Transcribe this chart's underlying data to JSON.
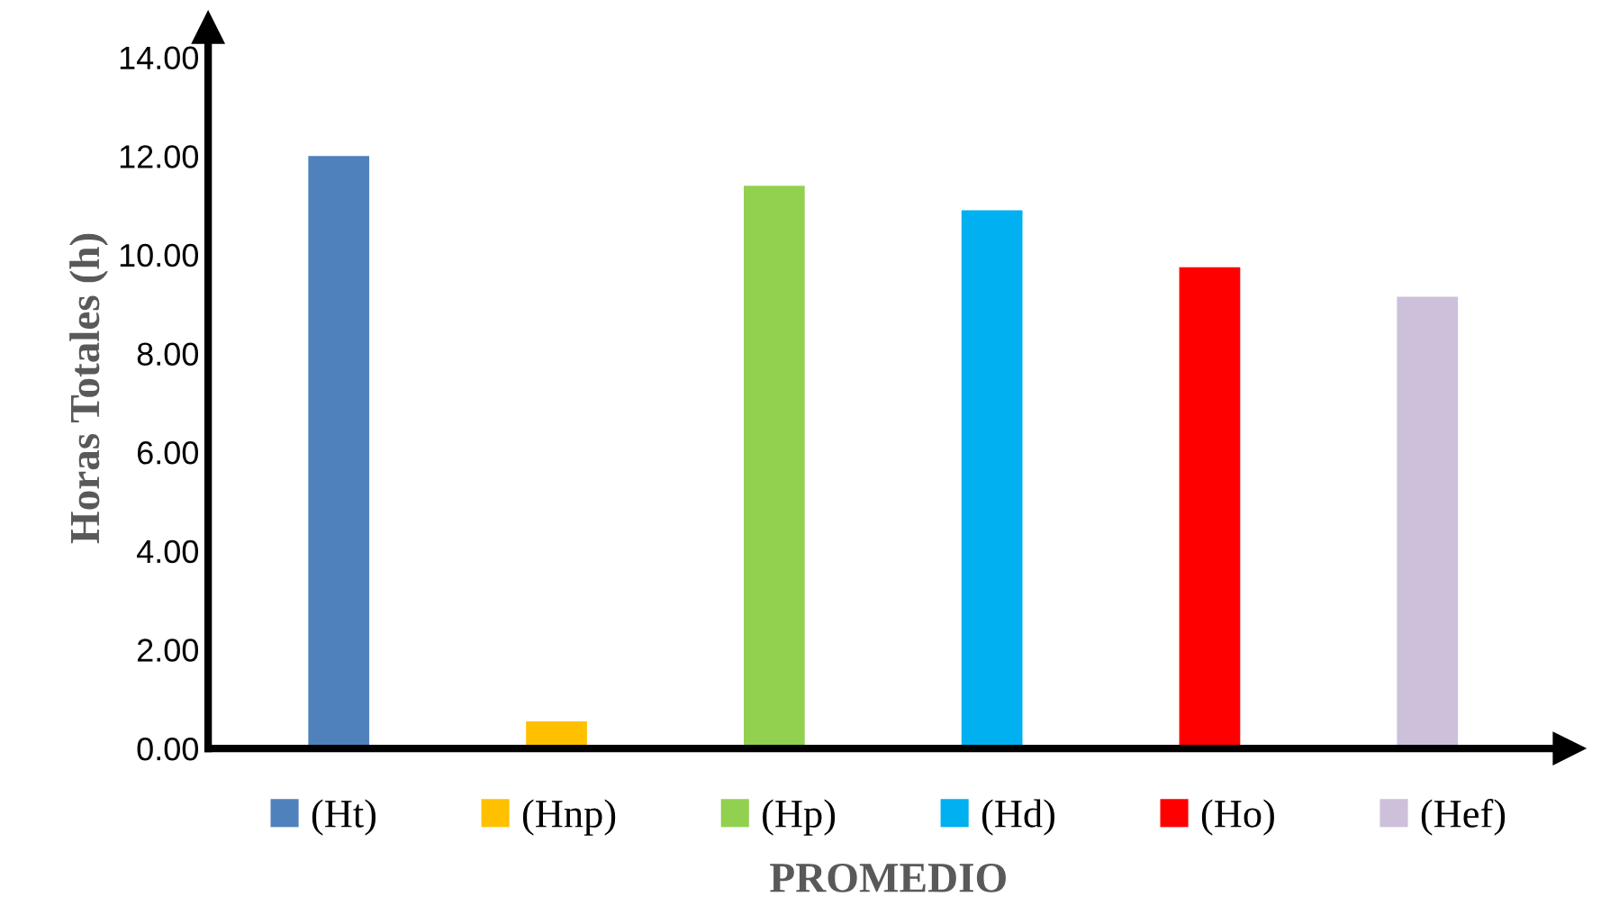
{
  "chart_data": {
    "type": "bar",
    "xlabel": "PROMEDIO",
    "ylabel": "Horas Totales (h)",
    "categories": [
      null,
      null,
      null,
      null,
      null,
      null
    ],
    "series": [
      {
        "name": "(Ht)",
        "color": "#4f81bd",
        "values": [
          12.0,
          null,
          null,
          null,
          null,
          null
        ]
      },
      {
        "name": "(Hnp)",
        "color": "#ffc000",
        "values": [
          null,
          0.55,
          null,
          null,
          null,
          null
        ]
      },
      {
        "name": "(Hp)",
        "color": "#92d050",
        "values": [
          null,
          null,
          11.4,
          null,
          null,
          null
        ]
      },
      {
        "name": "(Hd)",
        "color": "#00b0f0",
        "values": [
          null,
          null,
          null,
          10.9,
          null,
          null
        ]
      },
      {
        "name": "(Ho)",
        "color": "#ff0000",
        "values": [
          null,
          null,
          null,
          null,
          9.75,
          null
        ]
      },
      {
        "name": "(Hef)",
        "color": "#ccc0da",
        "values": [
          null,
          null,
          null,
          null,
          null,
          9.15
        ]
      }
    ],
    "ylim": [
      0,
      14.6
    ],
    "yticks": [
      {
        "value": 0,
        "label": "0.00"
      },
      {
        "value": 2,
        "label": "2.00"
      },
      {
        "value": 4,
        "label": "4.00"
      },
      {
        "value": 6,
        "label": "6.00"
      },
      {
        "value": 8,
        "label": "8.00"
      },
      {
        "value": 10,
        "label": "10.00"
      },
      {
        "value": 12,
        "label": "12.00"
      },
      {
        "value": 14,
        "label": "14.00"
      }
    ],
    "grid": false,
    "legend": "bottom"
  }
}
